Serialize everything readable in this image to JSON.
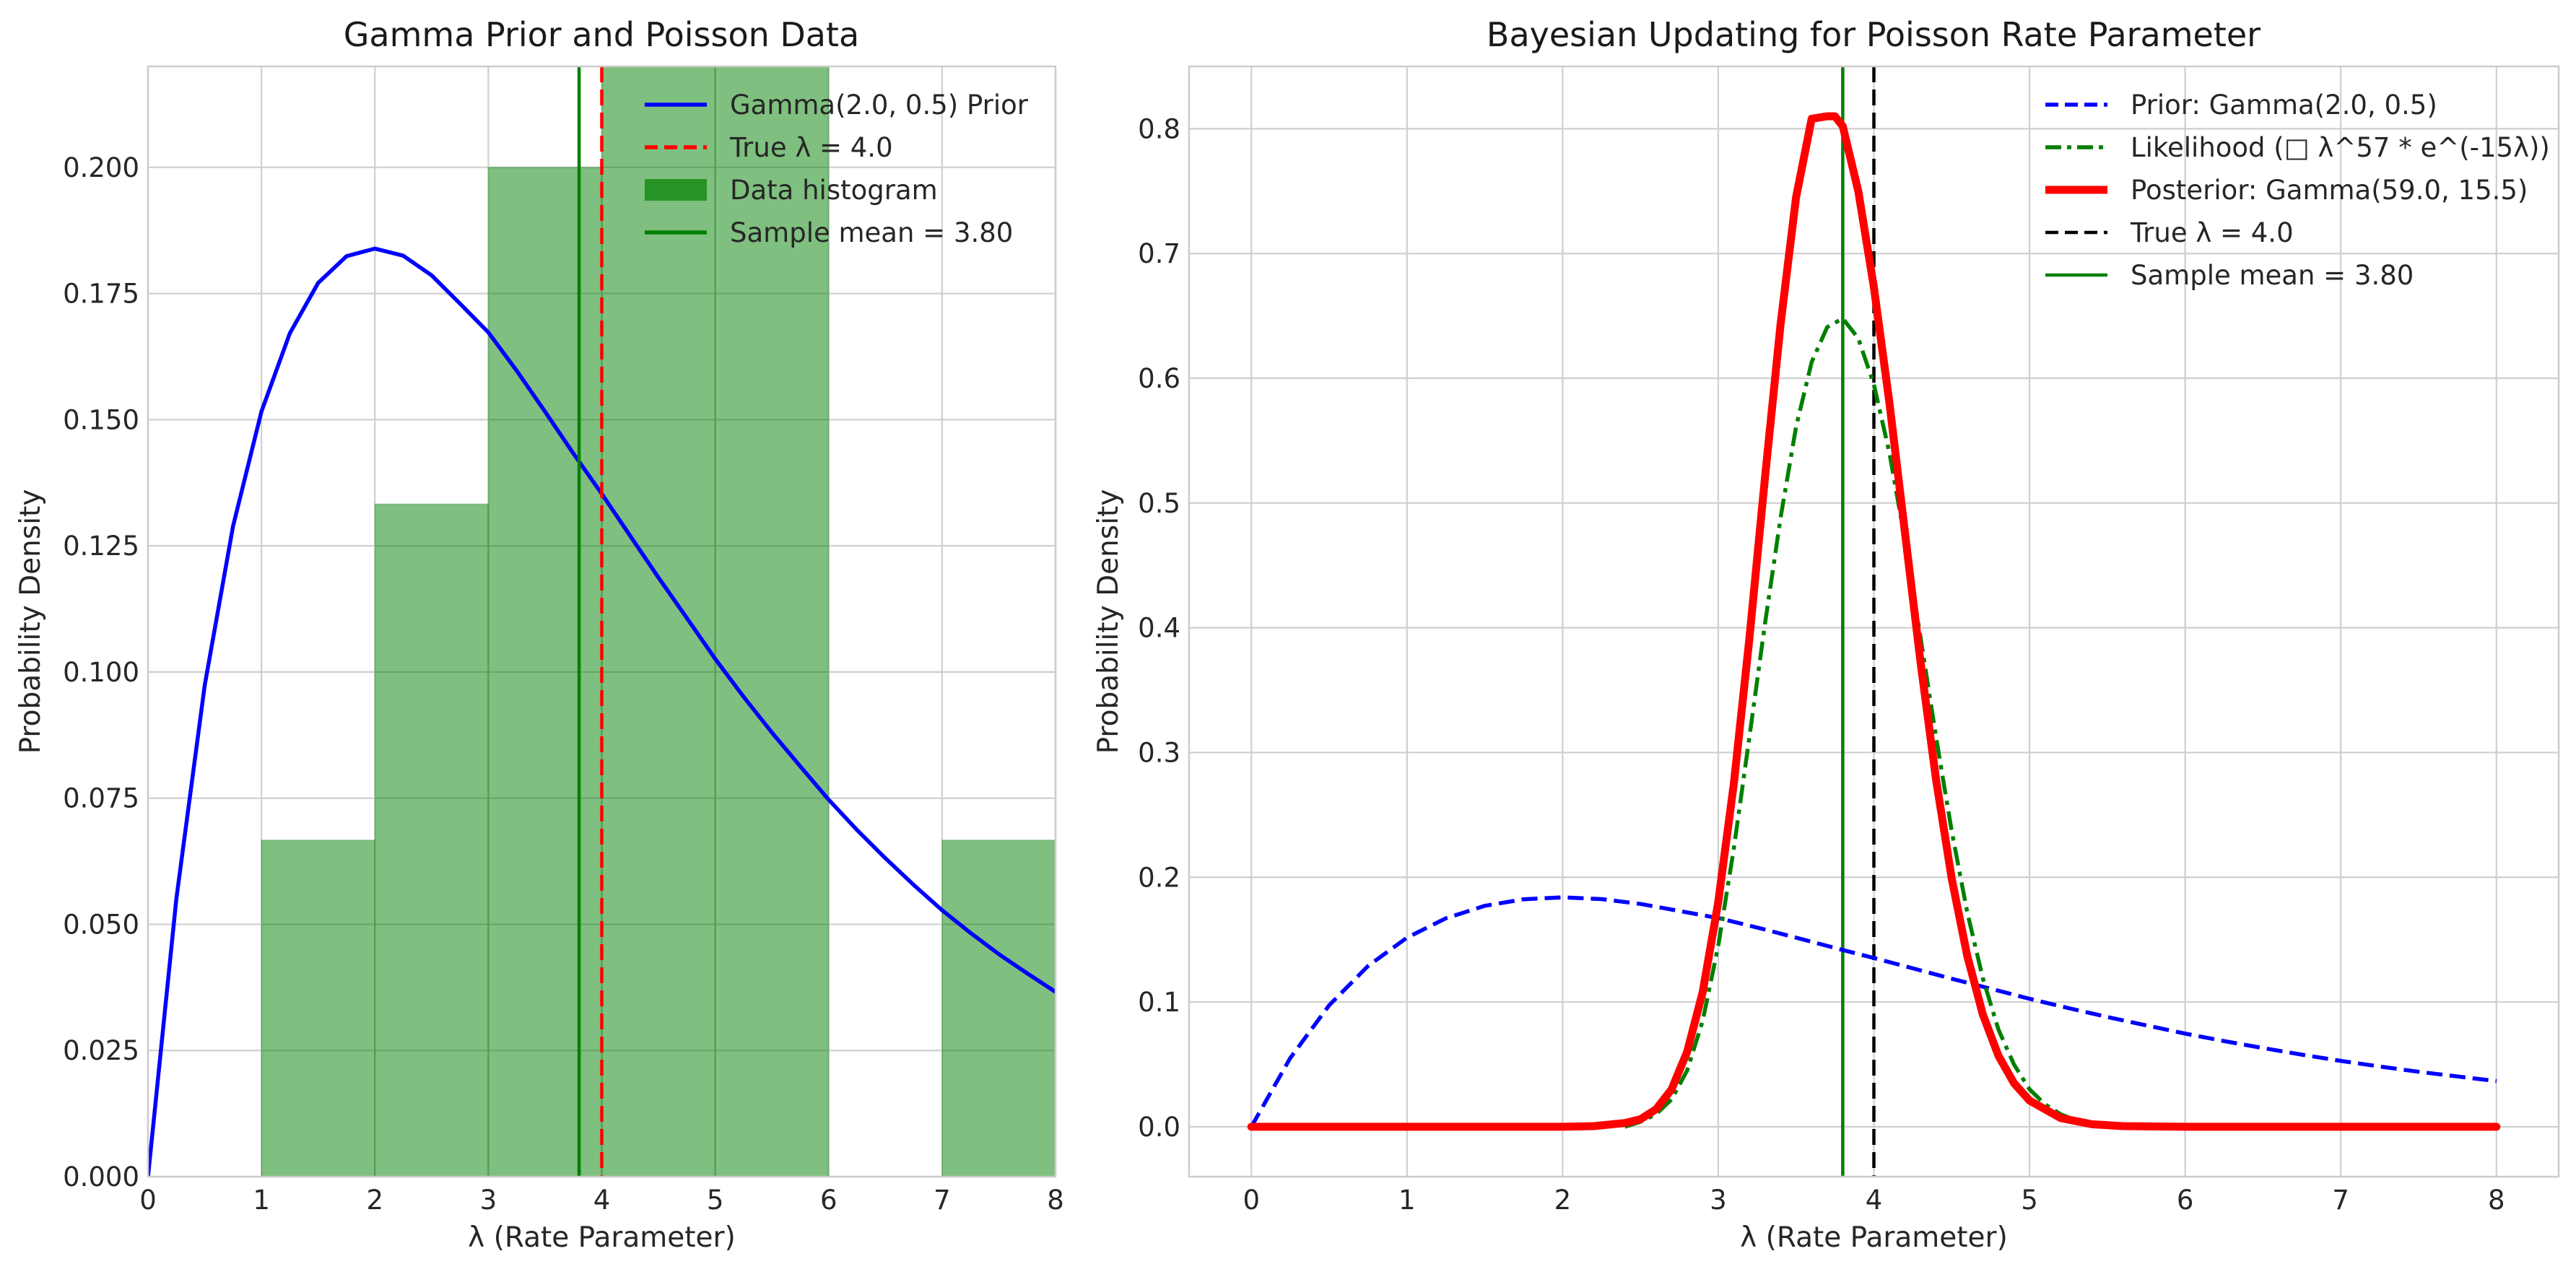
{
  "chart_data": [
    {
      "type": "line",
      "title": "Gamma Prior and Poisson Data",
      "xlabel": "λ (Rate Parameter)",
      "ylabel": "Probability Density",
      "xlim": [
        0,
        8
      ],
      "ylim": [
        0,
        0.22
      ],
      "xticks": [
        0,
        1,
        2,
        3,
        4,
        5,
        6,
        7,
        8
      ],
      "xtick_labels": [
        "0",
        "1",
        "2",
        "3",
        "4",
        "5",
        "6",
        "7",
        "8"
      ],
      "yticks": [
        0,
        0.025,
        0.05,
        0.075,
        0.1,
        0.125,
        0.15,
        0.175,
        0.2
      ],
      "ytick_labels": [
        "0.000",
        "0.025",
        "0.050",
        "0.075",
        "0.100",
        "0.125",
        "0.150",
        "0.175",
        "0.200"
      ],
      "grid": true,
      "legend_position": "top-right",
      "histogram": {
        "name": "Data histogram",
        "color": "#008000",
        "bins": [
          {
            "x0": 1,
            "x1": 2,
            "value": 0.0667
          },
          {
            "x0": 2,
            "x1": 3,
            "value": 0.1333
          },
          {
            "x0": 3,
            "x1": 4,
            "value": 0.2
          },
          {
            "x0": 4,
            "x1": 5,
            "value": 0.2667
          },
          {
            "x0": 5,
            "x1": 6,
            "value": 0.2667
          },
          {
            "x0": 6,
            "x1": 7,
            "value": 0
          },
          {
            "x0": 7,
            "x1": 8,
            "value": 0.0667
          }
        ]
      },
      "series": [
        {
          "name": "Gamma(2.0, 0.5) Prior",
          "color": "#0000ff",
          "style": "solid",
          "x": [
            0,
            0.25,
            0.5,
            0.75,
            1,
            1.25,
            1.5,
            1.75,
            2,
            2.25,
            2.5,
            2.75,
            3,
            3.25,
            3.5,
            3.75,
            4,
            4.25,
            4.5,
            4.75,
            5,
            5.25,
            5.5,
            5.75,
            6,
            6.25,
            6.5,
            6.75,
            7,
            7.25,
            7.5,
            7.75,
            8
          ],
          "y": [
            0,
            0.0551,
            0.0974,
            0.1289,
            0.1516,
            0.1671,
            0.1771,
            0.1824,
            0.1839,
            0.1825,
            0.1786,
            0.173,
            0.1673,
            0.1597,
            0.1516,
            0.1433,
            0.1353,
            0.127,
            0.1187,
            0.1107,
            0.1026,
            0.0951,
            0.088,
            0.0813,
            0.0747,
            0.0687,
            0.0631,
            0.0578,
            0.0528,
            0.0483,
            0.0441,
            0.0403,
            0.0366
          ]
        }
      ],
      "vlines": [
        {
          "name": "True λ = 4.0",
          "x": 4.0,
          "color": "#ff0000",
          "style": "dashed"
        },
        {
          "name": "Sample mean = 3.80",
          "x": 3.8,
          "color": "#008000",
          "style": "solid"
        }
      ]
    },
    {
      "type": "line",
      "title": "Bayesian Updating for Poisson Rate Parameter",
      "xlabel": "λ (Rate Parameter)",
      "ylabel": "Probability Density",
      "xlim": [
        -0.4,
        8.4
      ],
      "ylim": [
        -0.04,
        0.85
      ],
      "xticks": [
        0,
        1,
        2,
        3,
        4,
        5,
        6,
        7,
        8
      ],
      "xtick_labels": [
        "0",
        "1",
        "2",
        "3",
        "4",
        "5",
        "6",
        "7",
        "8"
      ],
      "yticks": [
        0,
        0.1,
        0.2,
        0.3,
        0.4,
        0.5,
        0.6,
        0.7,
        0.8
      ],
      "ytick_labels": [
        "0.0",
        "0.1",
        "0.2",
        "0.3",
        "0.4",
        "0.5",
        "0.6",
        "0.7",
        "0.8"
      ],
      "grid": true,
      "legend_position": "top-right",
      "series": [
        {
          "name": "Prior: Gamma(2.0, 0.5)",
          "color": "#0000ff",
          "style": "dashed",
          "x": [
            0,
            0.25,
            0.5,
            0.75,
            1,
            1.25,
            1.5,
            1.75,
            2,
            2.25,
            2.5,
            2.75,
            3,
            3.25,
            3.5,
            3.75,
            4,
            4.25,
            4.5,
            4.75,
            5,
            5.25,
            5.5,
            5.75,
            6,
            6.25,
            6.5,
            6.75,
            7,
            7.25,
            7.5,
            7.75,
            8
          ],
          "y": [
            0,
            0.0551,
            0.0974,
            0.1289,
            0.1516,
            0.1671,
            0.1771,
            0.1824,
            0.1839,
            0.1825,
            0.1786,
            0.173,
            0.1673,
            0.1597,
            0.1516,
            0.1433,
            0.1353,
            0.127,
            0.1187,
            0.1107,
            0.1026,
            0.0951,
            0.088,
            0.0813,
            0.0747,
            0.0687,
            0.0631,
            0.0578,
            0.0528,
            0.0483,
            0.0441,
            0.0403,
            0.0366
          ]
        },
        {
          "name": "Likelihood (□ λ^57 * e^(-15λ))",
          "color": "#008000",
          "style": "dashdot",
          "x": [
            2.4,
            2.5,
            2.6,
            2.7,
            2.8,
            2.9,
            3.0,
            3.1,
            3.2,
            3.3,
            3.4,
            3.5,
            3.6,
            3.7,
            3.8,
            3.9,
            4.0,
            4.1,
            4.2,
            4.3,
            4.4,
            4.5,
            4.6,
            4.7,
            4.8,
            4.9,
            5.0,
            5.1,
            5.2,
            5.3,
            5.4,
            5.5,
            5.6
          ],
          "y": [
            0.0,
            0.004,
            0.01,
            0.022,
            0.045,
            0.085,
            0.145,
            0.223,
            0.312,
            0.403,
            0.488,
            0.561,
            0.613,
            0.641,
            0.648,
            0.632,
            0.595,
            0.54,
            0.47,
            0.392,
            0.312,
            0.237,
            0.172,
            0.119,
            0.078,
            0.05,
            0.03,
            0.018,
            0.01,
            0.005,
            0.003,
            0.001,
            0.0
          ]
        },
        {
          "name": "Posterior: Gamma(59.0, 15.5)",
          "color": "#ff0000",
          "style": "solid",
          "x": [
            0,
            1,
            2,
            2.2,
            2.4,
            2.5,
            2.6,
            2.7,
            2.8,
            2.9,
            3.0,
            3.1,
            3.2,
            3.3,
            3.4,
            3.5,
            3.6,
            3.7,
            3.75,
            3.8,
            3.9,
            4.0,
            4.1,
            4.2,
            4.3,
            4.4,
            4.5,
            4.6,
            4.7,
            4.8,
            4.9,
            5.0,
            5.2,
            5.4,
            5.6,
            6.0,
            7.0,
            8.0
          ],
          "y": [
            0,
            0,
            0,
            0.0005,
            0.003,
            0.006,
            0.014,
            0.03,
            0.06,
            0.108,
            0.18,
            0.275,
            0.391,
            0.52,
            0.643,
            0.745,
            0.808,
            0.81,
            0.81,
            0.802,
            0.75,
            0.673,
            0.58,
            0.476,
            0.372,
            0.278,
            0.199,
            0.137,
            0.09,
            0.057,
            0.035,
            0.021,
            0.007,
            0.002,
            0.0005,
            0,
            0,
            0
          ]
        }
      ],
      "vlines": [
        {
          "name": "True λ = 4.0",
          "x": 4.0,
          "color": "#000000",
          "style": "dashed"
        },
        {
          "name": "Sample mean = 3.80",
          "x": 3.8,
          "color": "#008000",
          "style": "solid"
        }
      ]
    }
  ]
}
